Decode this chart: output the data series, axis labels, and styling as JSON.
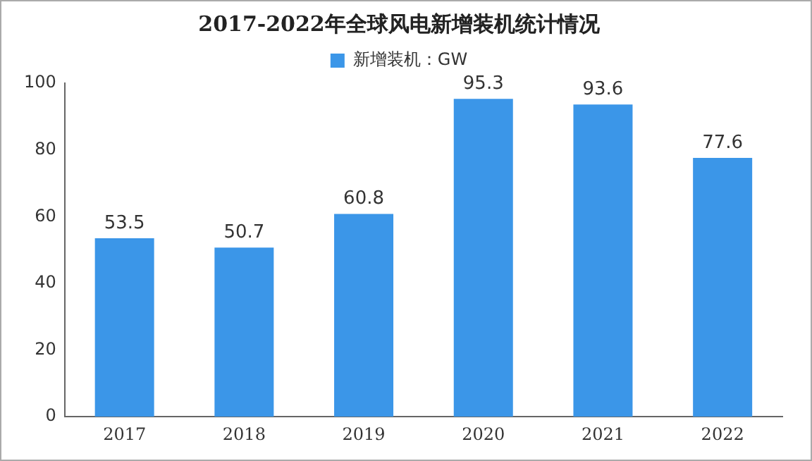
{
  "chart_data": {
    "type": "bar",
    "title": "2017-2022年全球风电新增装机统计情况",
    "categories": [
      "2017",
      "2018",
      "2019",
      "2020",
      "2021",
      "2022"
    ],
    "series": [
      {
        "name": "新增装机：GW",
        "color": "#3b96e8",
        "values": [
          53.5,
          50.7,
          60.8,
          95.3,
          93.6,
          77.6
        ]
      }
    ],
    "ylim": [
      0,
      100
    ],
    "yticks": [
      0,
      20,
      40,
      60,
      80,
      100
    ],
    "grid": false,
    "legend": "top",
    "data_labels": true
  }
}
